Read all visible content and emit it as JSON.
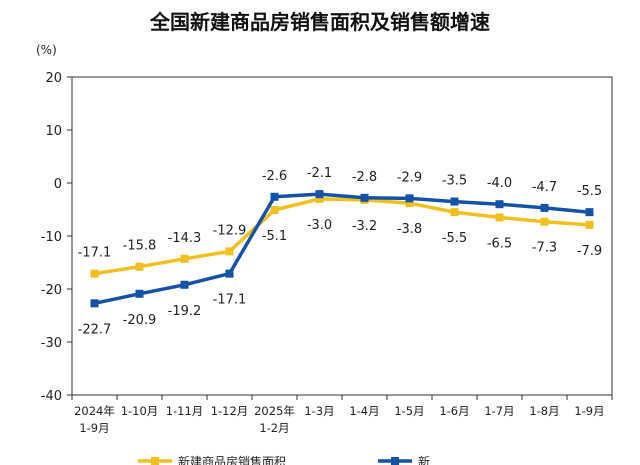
{
  "chart_data": {
    "type": "line",
    "title": "全国新建商品房销售面积及销售额增速",
    "ylabel": "(%)",
    "ylim": [
      -40,
      20
    ],
    "yticks": [
      20,
      10,
      0,
      -10,
      -20,
      -30,
      -40
    ],
    "grid": false,
    "legend_position": "bottom",
    "categories": [
      "2024年\n1-9月",
      "1-10月",
      "1-11月",
      "1-12月",
      "2025年\n1-2月",
      "1-3月",
      "1-4月",
      "1-5月",
      "1-6月",
      "1-7月",
      "1-8月",
      "1-9月"
    ],
    "series": [
      {
        "name": "新建商品房销售面积",
        "color": "#f2c01e",
        "values": [
          -17.1,
          -15.8,
          -14.3,
          -12.9,
          -5.1,
          -3.0,
          -3.2,
          -3.8,
          -5.5,
          -6.5,
          -7.3,
          -7.9
        ],
        "labels": [
          "-17.1",
          "-15.8",
          "-14.3",
          "-12.9",
          "-5.1",
          "-3.0",
          "-3.2",
          "-3.8",
          "-5.5",
          "-6.5",
          "-7.3",
          "-7.9"
        ]
      },
      {
        "name": "新",
        "color": "#1452a8",
        "values": [
          -22.7,
          -20.9,
          -19.2,
          -17.1,
          -2.6,
          -2.1,
          -2.8,
          -2.9,
          -3.5,
          -4.0,
          -4.7,
          -5.5
        ],
        "labels": [
          "-22.7",
          "-20.9",
          "-19.2",
          "-17.1",
          "-2.6",
          "-2.1",
          "-2.8",
          "-2.9",
          "-3.5",
          "-4.0",
          "-4.7",
          "-5.5"
        ]
      }
    ]
  }
}
